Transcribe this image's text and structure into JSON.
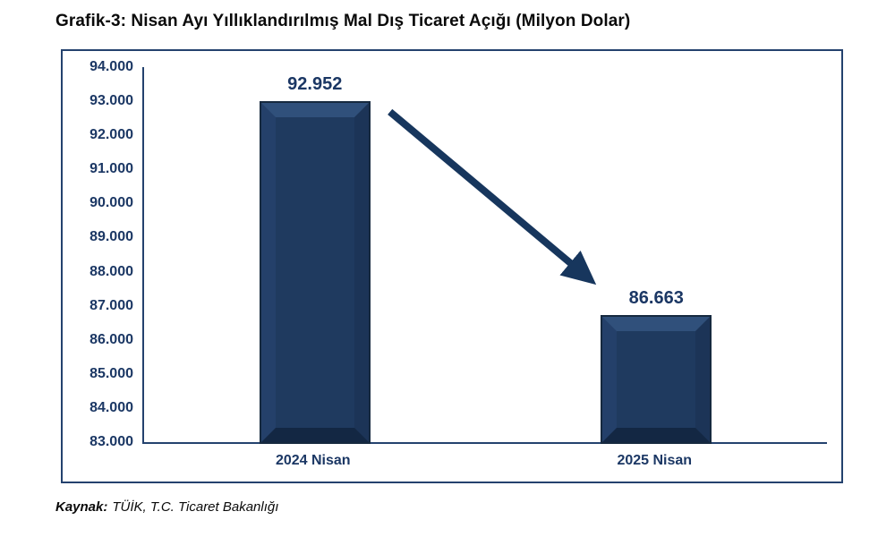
{
  "page": {
    "title": "Grafik-3: Nisan Ayı Yıllıklandırılmış Mal Dış Ticaret Açığı (Milyon Dolar)",
    "source_label": "Kaynak:",
    "source_text": "TÜİK, T.C. Ticaret Bakanlığı"
  },
  "colors": {
    "text_navy": "#1B3764",
    "title_color": "#0A0A0A",
    "axis": "#24426E",
    "frame_border": "#24426E",
    "bar_center": "#1F3A5F",
    "bar_bevel_top": "#30507B",
    "bar_bevel_left": "#24406A",
    "bar_bevel_right": "#1C3457",
    "bar_bevel_bottom": "#132743",
    "bar_outline": "#16293F",
    "arrow": "#17365D",
    "background": "#FFFFFF"
  },
  "chart_data": {
    "type": "bar",
    "title": "Grafik-3: Nisan Ayı Yıllıklandırılmış Mal Dış Ticaret Açığı (Milyon Dolar)",
    "categories": [
      "2024 Nisan",
      "2025 Nisan"
    ],
    "values": [
      92952,
      86663
    ],
    "value_labels": [
      "92.952",
      "86.663"
    ],
    "xlabel": "",
    "ylabel": "",
    "ylim": [
      83000,
      94000
    ],
    "ytick_step": 1000,
    "ytick_labels": [
      "94.000",
      "93.000",
      "92.000",
      "91.000",
      "90.000",
      "89.000",
      "88.000",
      "87.000",
      "86.000",
      "85.000",
      "84.000",
      "83.000"
    ],
    "grid": false,
    "legend": false,
    "annotation": {
      "type": "arrow",
      "direction": "down-right",
      "from_category": "2024 Nisan",
      "to_category": "2025 Nisan"
    }
  }
}
